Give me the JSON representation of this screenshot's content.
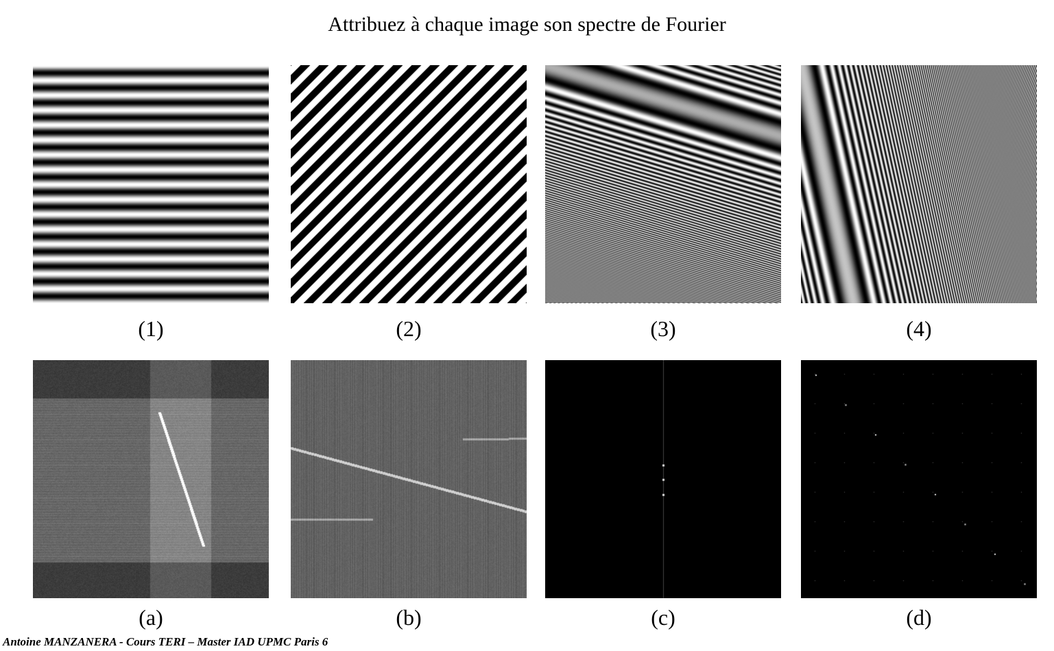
{
  "title": "Attribuez à chaque image son spectre de Fourier",
  "images": [
    {
      "label": "(1)",
      "pattern": "horizontal-stripes"
    },
    {
      "label": "(2)",
      "pattern": "diagonal-stripes"
    },
    {
      "label": "(3)",
      "pattern": "chirp-shallow"
    },
    {
      "label": "(4)",
      "pattern": "chirp-steep"
    }
  ],
  "spectra": [
    {
      "label": "(a)",
      "pattern": "spectrum-smear-steep"
    },
    {
      "label": "(b)",
      "pattern": "spectrum-smear-shallow"
    },
    {
      "label": "(c)",
      "pattern": "spectrum-vertical-dots"
    },
    {
      "label": "(d)",
      "pattern": "spectrum-diagonal-dots"
    }
  ],
  "footer": "Antoine MANZANERA - Cours TERI – Master IAD UPMC Paris 6"
}
